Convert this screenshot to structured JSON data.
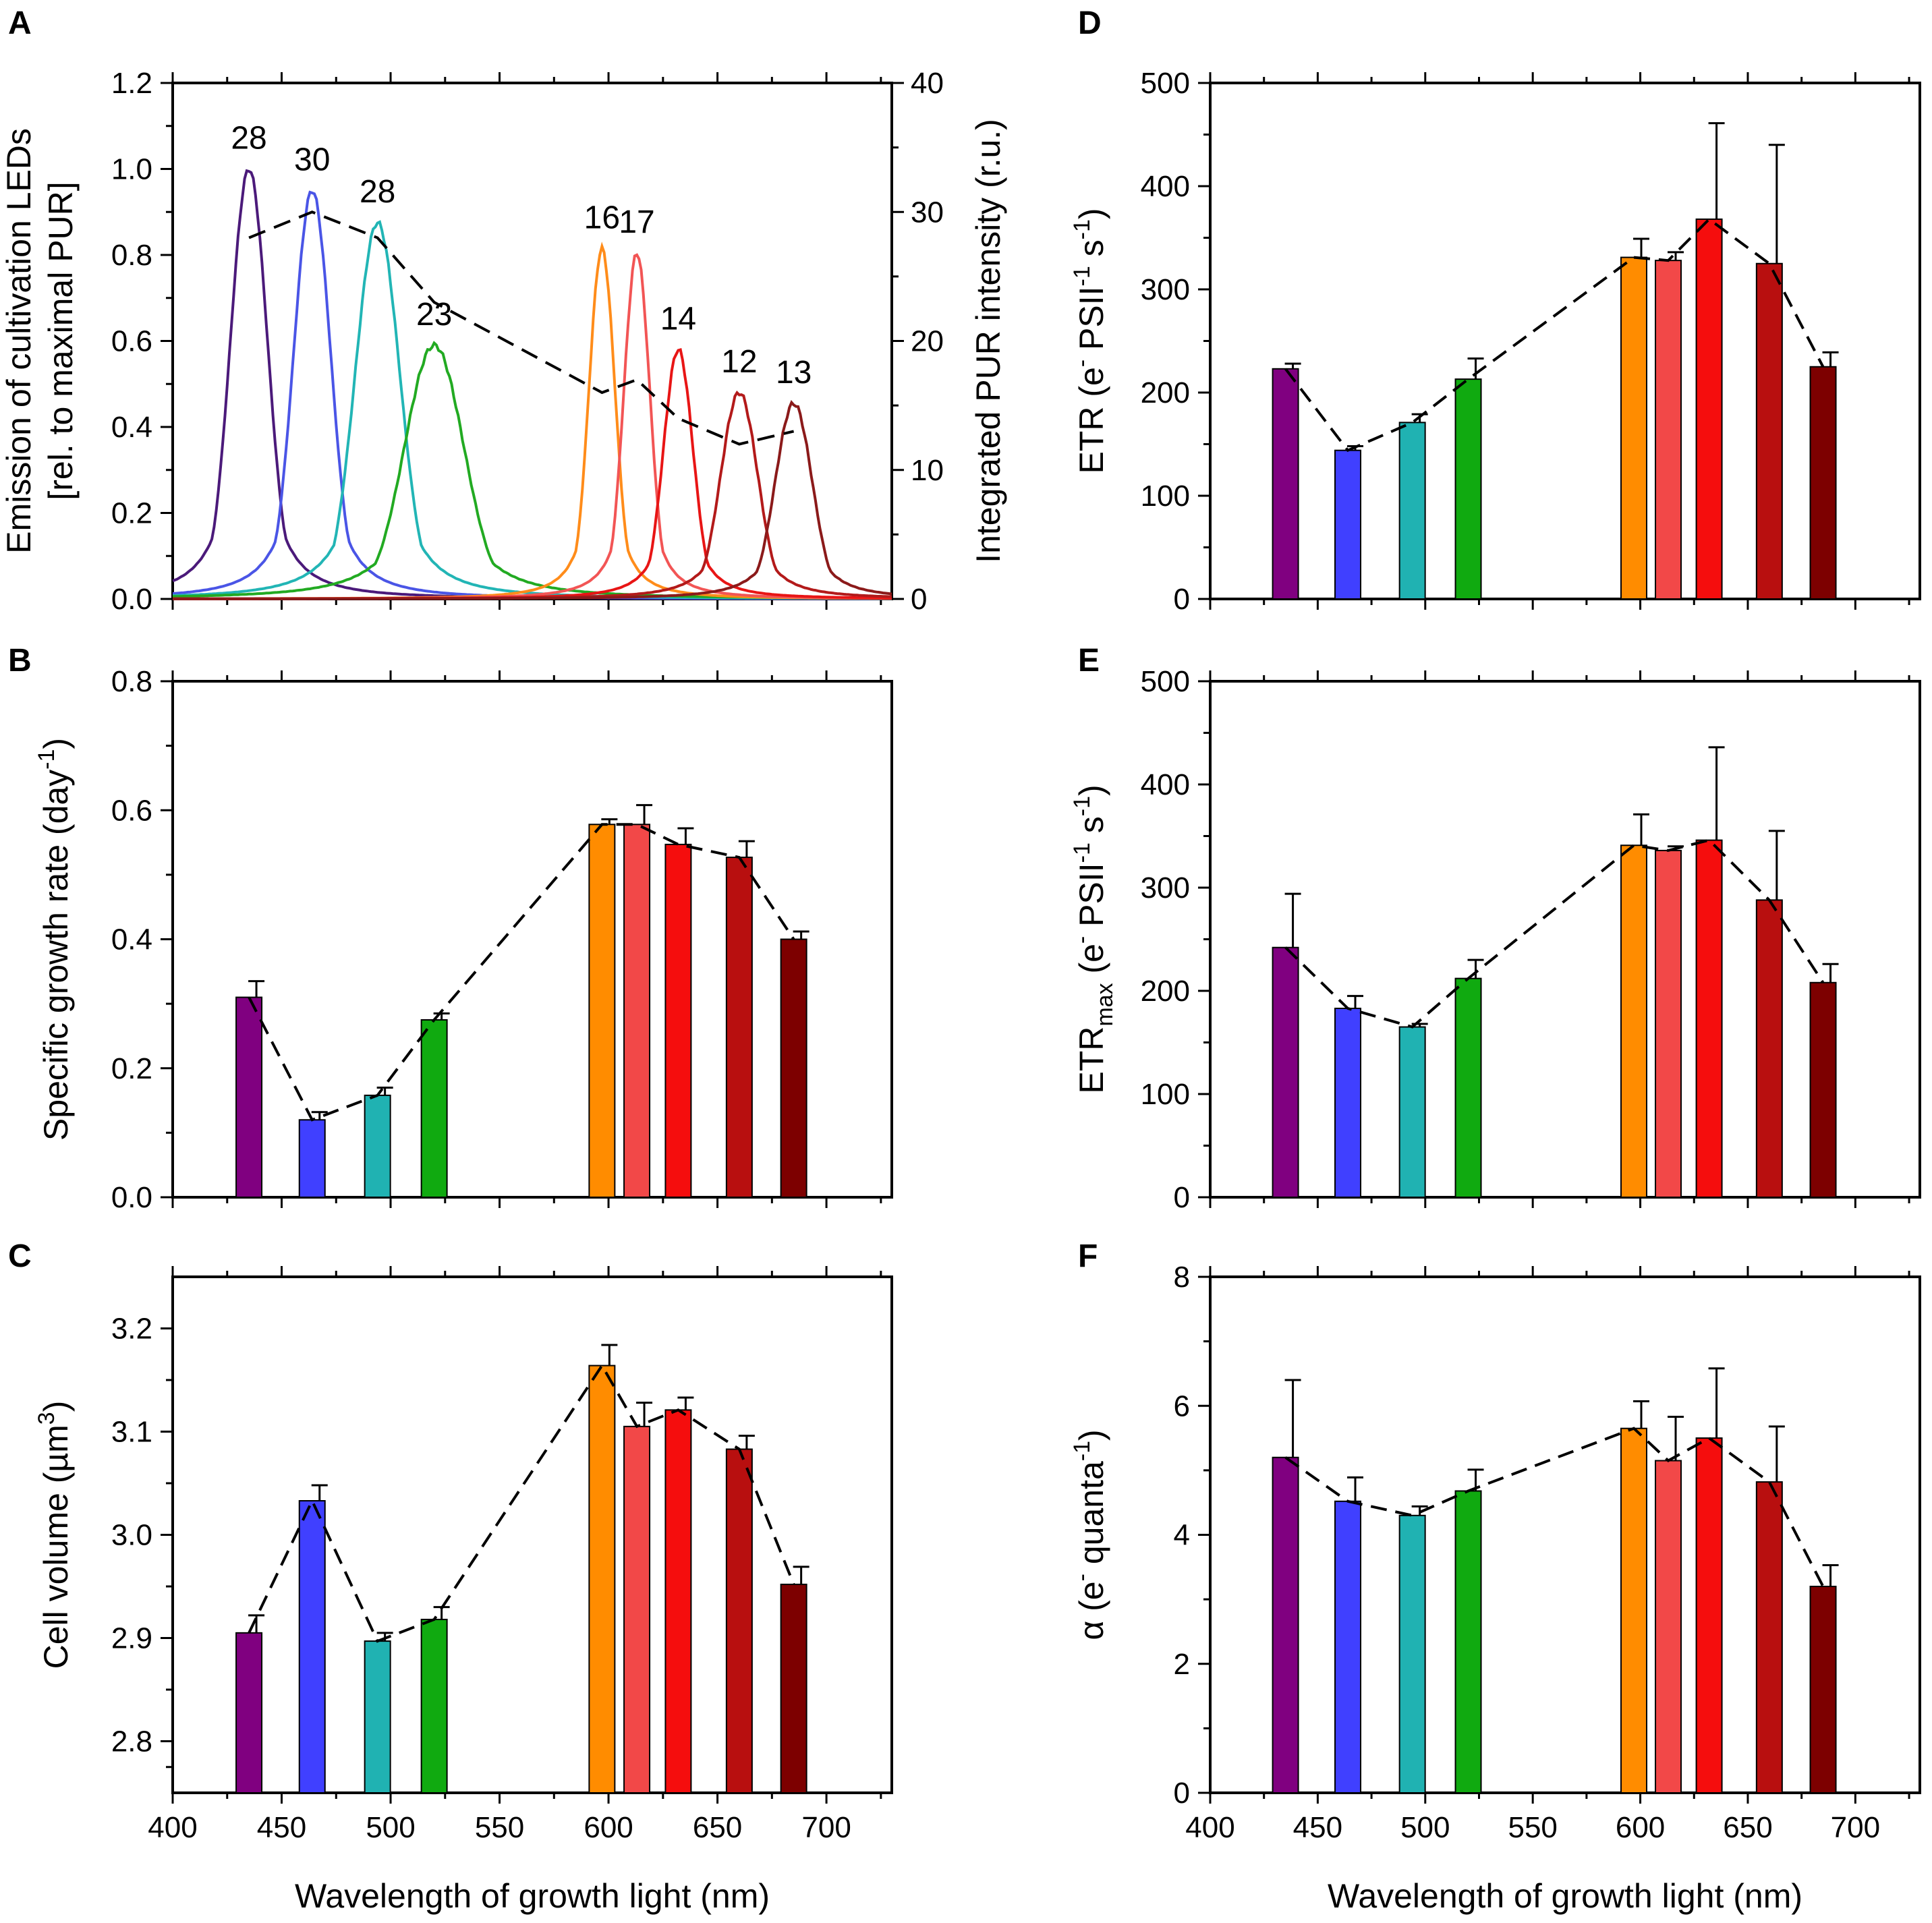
{
  "chart_data": [
    {
      "panel": "A",
      "type": "line",
      "xlabel": "",
      "ylabel_lines": [
        "Emission of cultivation LEDs",
        "[rel. to maximal PUR]"
      ],
      "y2label": "Integrated PUR intensity (r.u.)",
      "xlim": [
        400,
        730
      ],
      "ylim": [
        0,
        1.2
      ],
      "y2lim": [
        0,
        40
      ],
      "xticks": [
        400,
        450,
        500,
        550,
        600,
        650,
        700
      ],
      "yticks": [
        "0.0",
        "0.2",
        "0.4",
        "0.6",
        "0.8",
        "1.0",
        "1.2"
      ],
      "y2ticks": [
        "0",
        "10",
        "20",
        "30",
        "40"
      ],
      "show_xtick_labels": false,
      "series": [
        {
          "name": "435 nm",
          "peak": 435,
          "max": 1.0,
          "width": 10,
          "color": "#4b1a7a",
          "pur_label": "28"
        },
        {
          "name": "464 nm",
          "peak": 464,
          "max": 0.95,
          "width": 10,
          "color": "#4a55e6",
          "pur_label": "30"
        },
        {
          "name": "494 nm",
          "peak": 494,
          "max": 0.875,
          "width": 12,
          "color": "#22b5b5",
          "pur_label": "28"
        },
        {
          "name": "520 nm",
          "peak": 520,
          "max": 0.59,
          "width": 16,
          "color": "#22aa22",
          "pur_label": "23"
        },
        {
          "name": "597 nm",
          "peak": 597,
          "max": 0.815,
          "width": 7,
          "color": "#ff8c1a",
          "pur_label": "16"
        },
        {
          "name": "613 nm",
          "peak": 613,
          "max": 0.805,
          "width": 7,
          "color": "#f25555",
          "pur_label": "17"
        },
        {
          "name": "632 nm",
          "peak": 632,
          "max": 0.58,
          "width": 8,
          "color": "#e81515",
          "pur_label": "14"
        },
        {
          "name": "660 nm",
          "peak": 660,
          "max": 0.48,
          "width": 10,
          "color": "#b31a1a",
          "pur_label": "12"
        },
        {
          "name": "685 nm",
          "peak": 685,
          "max": 0.455,
          "width": 10,
          "color": "#8b1a1a",
          "pur_label": "13"
        }
      ],
      "pur_x": [
        435,
        464,
        494,
        520,
        597,
        613,
        632,
        660,
        685
      ],
      "pur_values": [
        28,
        30,
        28,
        23,
        16,
        17,
        14,
        12,
        13
      ]
    },
    {
      "panel": "B",
      "type": "bar",
      "ylabel": "Specific growth rate (day",
      "ylabel_sup": "-1",
      "ylabel_end": ")",
      "xlim": [
        400,
        730
      ],
      "ylim": [
        0,
        0.8
      ],
      "xticks": [
        400,
        450,
        500,
        550,
        600,
        650,
        700
      ],
      "yticks": [
        "0.0",
        "0.2",
        "0.4",
        "0.6",
        "0.8"
      ],
      "show_xtick_labels": false,
      "x": [
        435,
        464,
        494,
        520,
        597,
        613,
        632,
        660,
        685
      ],
      "values": [
        0.31,
        0.12,
        0.158,
        0.275,
        0.578,
        0.578,
        0.547,
        0.527,
        0.4
      ],
      "errors": [
        0.025,
        0.012,
        0.012,
        0.01,
        0.008,
        0.03,
        0.025,
        0.025,
        0.012
      ],
      "colors": [
        "#800080",
        "#4040ff",
        "#20b2b2",
        "#10aa10",
        "#ff8c00",
        "#f24848",
        "#f50d0d",
        "#b80f0f",
        "#7d0000"
      ]
    },
    {
      "panel": "C",
      "type": "bar",
      "ylabel": "Cell volume (µm",
      "ylabel_sup": "3",
      "ylabel_end": ")",
      "xlabel": "Wavelength of growth light (nm)",
      "xlim": [
        400,
        730
      ],
      "ylim": [
        2.75,
        3.25
      ],
      "baseline": 2.75,
      "xticks": [
        400,
        450,
        500,
        550,
        600,
        650,
        700
      ],
      "xtick_labels": [
        "400",
        "450",
        "500",
        "550",
        "600",
        "650",
        "700"
      ],
      "yticks": [
        "2.8",
        "2.9",
        "3.0",
        "3.1",
        "3.2"
      ],
      "show_xtick_labels": true,
      "x": [
        435,
        464,
        494,
        520,
        597,
        613,
        632,
        660,
        685
      ],
      "values": [
        2.905,
        3.033,
        2.897,
        2.918,
        3.164,
        3.105,
        3.121,
        3.083,
        2.952
      ],
      "errors": [
        0.017,
        0.015,
        0.008,
        0.012,
        0.02,
        0.023,
        0.012,
        0.013,
        0.017
      ],
      "colors": [
        "#800080",
        "#4040ff",
        "#20b2b2",
        "#10aa10",
        "#ff8c00",
        "#f24848",
        "#f50d0d",
        "#b80f0f",
        "#7d0000"
      ]
    },
    {
      "panel": "D",
      "type": "bar",
      "ylabel": "ETR (e",
      "ylabel_mid": " PSII",
      "ylabel_mid2": " s",
      "ylabel_end": ")",
      "sup_minus": "-",
      "sup_neg1": "-1",
      "xlim": [
        400,
        730
      ],
      "ylim": [
        0,
        500
      ],
      "xticks": [
        400,
        450,
        500,
        550,
        600,
        650,
        700
      ],
      "yticks": [
        "0",
        "100",
        "200",
        "300",
        "400",
        "500"
      ],
      "show_xtick_labels": false,
      "x": [
        435,
        464,
        494,
        520,
        597,
        613,
        632,
        660,
        685
      ],
      "values": [
        223,
        144,
        171,
        213,
        331,
        328,
        368,
        325,
        225
      ],
      "errors": [
        5,
        4,
        8,
        20,
        18,
        8,
        93,
        115,
        14
      ],
      "colors": [
        "#800080",
        "#4040ff",
        "#20b2b2",
        "#10aa10",
        "#ff8c00",
        "#f24848",
        "#f50d0d",
        "#b80f0f",
        "#7d0000"
      ]
    },
    {
      "panel": "E",
      "type": "bar",
      "ylabel": "ETR",
      "ylabel_sub": "max",
      "ylabel_rest": " (e",
      "ylabel_mid": " PSII",
      "ylabel_mid2": " s",
      "ylabel_end": ")",
      "sup_minus": "-",
      "sup_neg1": "-1",
      "xlim": [
        400,
        730
      ],
      "ylim": [
        0,
        500
      ],
      "xticks": [
        400,
        450,
        500,
        550,
        600,
        650,
        700
      ],
      "yticks": [
        "0",
        "100",
        "200",
        "300",
        "400",
        "500"
      ],
      "show_xtick_labels": false,
      "x": [
        435,
        464,
        494,
        520,
        597,
        613,
        632,
        660,
        685
      ],
      "values": [
        242,
        183,
        165,
        212,
        341,
        336,
        346,
        288,
        208
      ],
      "errors": [
        52,
        12,
        3,
        18,
        30,
        4,
        90,
        67,
        18
      ],
      "colors": [
        "#800080",
        "#4040ff",
        "#20b2b2",
        "#10aa10",
        "#ff8c00",
        "#f24848",
        "#f50d0d",
        "#b80f0f",
        "#7d0000"
      ]
    },
    {
      "panel": "F",
      "type": "bar",
      "ylabel": "α (e",
      "ylabel_mid": " quanta",
      "ylabel_end": ")",
      "sup_minus": "-",
      "sup_neg1": "-1",
      "xlabel": "Wavelength of growth light (nm)",
      "xlim": [
        400,
        730
      ],
      "ylim": [
        0,
        8
      ],
      "xticks": [
        400,
        450,
        500,
        550,
        600,
        650,
        700
      ],
      "xtick_labels": [
        "400",
        "450",
        "500",
        "550",
        "600",
        "650",
        "700"
      ],
      "yticks": [
        "0",
        "2",
        "4",
        "6",
        "8"
      ],
      "show_xtick_labels": true,
      "x": [
        435,
        464,
        494,
        520,
        597,
        613,
        632,
        660,
        685
      ],
      "values": [
        5.2,
        4.52,
        4.3,
        4.68,
        5.65,
        5.15,
        5.5,
        4.82,
        3.2
      ],
      "errors": [
        1.2,
        0.37,
        0.14,
        0.33,
        0.42,
        0.68,
        1.08,
        0.86,
        0.33
      ],
      "colors": [
        "#800080",
        "#4040ff",
        "#20b2b2",
        "#10aa10",
        "#ff8c00",
        "#f24848",
        "#f50d0d",
        "#b80f0f",
        "#7d0000"
      ]
    }
  ]
}
